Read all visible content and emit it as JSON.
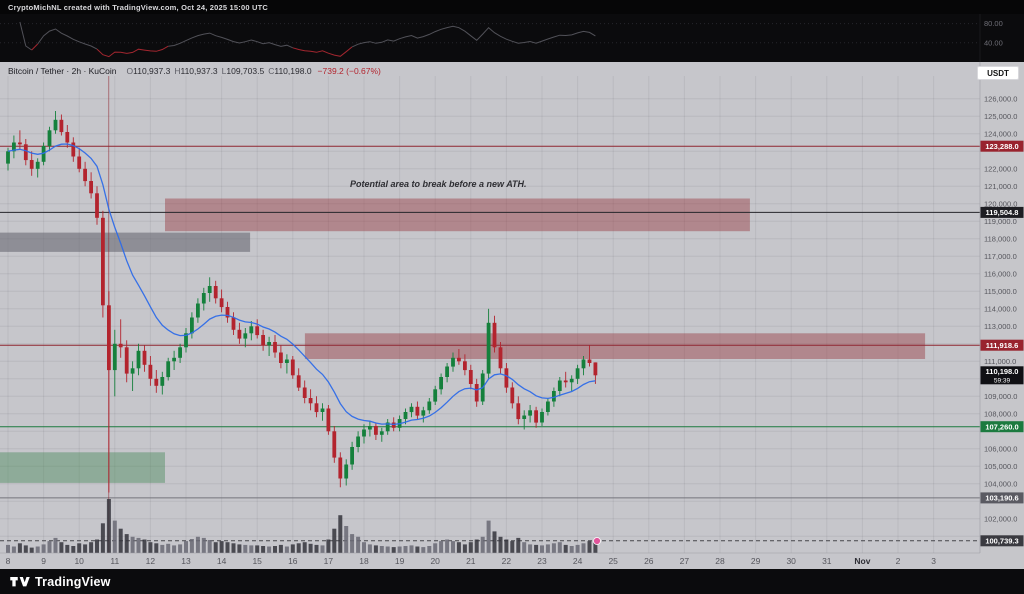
{
  "colors": {
    "up": "#15803c",
    "down": "#b3242e",
    "ma": "#2e6be8"
  },
  "top_bar": {
    "attribution": "CryptoMichNL created with TradingView.com, Oct 24, 2025 15:00 UTC"
  },
  "indicator_pane": {
    "ticks": [
      "80.00",
      "40.00"
    ]
  },
  "symbol_row": {
    "title": "Bitcoin / Tether · 2h · KuCoin",
    "ohlc": [
      {
        "k": "O",
        "v": "110,937.3"
      },
      {
        "k": "H",
        "v": "110,937.3"
      },
      {
        "k": "L",
        "v": "109,703.5"
      },
      {
        "k": "C",
        "v": "110,198.0"
      }
    ],
    "change": "−739.2 (−0.67%)",
    "currency_button": "USDT"
  },
  "annotation": {
    "text": "Potential area to break before a new ATH.",
    "day": 17.6,
    "price": 121100
  },
  "price_labels": [
    {
      "text": "123,288.0",
      "price": 123288.0,
      "bg": "#99232e"
    },
    {
      "text": "119,504.8",
      "price": 119504.8,
      "bg": "#1d1d22"
    },
    {
      "text": "111,918.6",
      "price": 111918.6,
      "bg": "#99232e"
    },
    {
      "text": "110,198.0",
      "price": 110198.0,
      "bg": "#101014",
      "countdown": "59:39"
    },
    {
      "text": "107,260.0",
      "price": 107260.0,
      "bg": "#1c7a3f"
    },
    {
      "text": "103,190.6",
      "price": 103190.6,
      "bg": "#5a5a62"
    },
    {
      "text": "100,739.3",
      "price": 100739.3,
      "bg": "#3a3a40"
    }
  ],
  "levels": [
    {
      "price": 123288.0,
      "color": "#8f2631",
      "dash": ""
    },
    {
      "price": 119504.8,
      "color": "#26262b",
      "dash": ""
    },
    {
      "price": 111918.6,
      "color": "#8f2631",
      "dash": ""
    },
    {
      "price": 107260.0,
      "color": "#1c7a3f",
      "dash": ""
    },
    {
      "price": 103190.6,
      "color": "#74747b",
      "dash": ""
    },
    {
      "price": 100739.3,
      "color": "#45454b",
      "dash": "4 3"
    }
  ],
  "zones": [
    {
      "name": "supply-zone-upper",
      "day_from": 12.41,
      "day_to": 28.84,
      "price_top": 120300,
      "price_bottom": 118430,
      "color": "rgba(148,48,56,0.42)"
    },
    {
      "name": "gray-zone",
      "day_from": 7.6,
      "day_to": 14.8,
      "price_top": 118350,
      "price_bottom": 117250,
      "color": "rgba(96,96,108,0.55)"
    },
    {
      "name": "supply-zone-mid",
      "day_from": 16.34,
      "day_to": 33.76,
      "price_top": 112600,
      "price_bottom": 111130,
      "color": "rgba(148,48,56,0.42)"
    },
    {
      "name": "demand-zone-green",
      "day_from": 7.6,
      "day_to": 12.41,
      "price_top": 105800,
      "price_bottom": 104050,
      "color": "rgba(52,130,70,0.38)"
    }
  ],
  "vline": {
    "day": 10.83,
    "color": "rgba(143,38,49,0.55)"
  },
  "time_axis": {
    "labels": [
      "8",
      "9",
      "10",
      "11",
      "12",
      "13",
      "14",
      "15",
      "16",
      "17",
      "18",
      "19",
      "20",
      "21",
      "22",
      "23",
      "24",
      "25",
      "26",
      "27",
      "28",
      "29",
      "30",
      "31",
      "Nov",
      "2",
      "3"
    ]
  },
  "footer": {
    "brand": "TradingView"
  },
  "chart_data": {
    "type": "candlestick",
    "title": "Bitcoin / Tether",
    "interval": "2h",
    "exchange": "KuCoin",
    "ylim": [
      100500,
      126500
    ],
    "start_day": 8,
    "candles_per_day": 6,
    "ma_period": 14,
    "last": {
      "open": 110937.3,
      "high": 110937.3,
      "low": 109703.5,
      "close": 110198.0,
      "change": -739.2,
      "change_pct": -0.67
    },
    "candles": [
      [
        122300,
        123200,
        121900,
        123000
      ],
      [
        123000,
        123900,
        122600,
        123500
      ],
      [
        123500,
        124200,
        123100,
        123400
      ],
      [
        123400,
        123700,
        122200,
        122500
      ],
      [
        122500,
        123000,
        121600,
        122000
      ],
      [
        122000,
        122600,
        121500,
        122400
      ],
      [
        122400,
        123500,
        122200,
        123300
      ],
      [
        123300,
        124400,
        123000,
        124200
      ],
      [
        124200,
        125300,
        124000,
        124800
      ],
      [
        124800,
        125100,
        123900,
        124100
      ],
      [
        124100,
        124500,
        123200,
        123500
      ],
      [
        123500,
        123800,
        122400,
        122700
      ],
      [
        122700,
        123200,
        121800,
        122000
      ],
      [
        122000,
        122400,
        121000,
        121300
      ],
      [
        121300,
        121800,
        120300,
        120600
      ],
      [
        120600,
        121000,
        118800,
        119200
      ],
      [
        119200,
        119600,
        113500,
        114200
      ],
      [
        114200,
        115000,
        103500,
        110500
      ],
      [
        110500,
        112800,
        109000,
        112000
      ],
      [
        112000,
        113400,
        111200,
        111800
      ],
      [
        111800,
        112200,
        109800,
        110300
      ],
      [
        110300,
        111000,
        109300,
        110600
      ],
      [
        110600,
        112000,
        110200,
        111600
      ],
      [
        111600,
        111900,
        110400,
        110800
      ],
      [
        110800,
        111300,
        109600,
        110000
      ],
      [
        110000,
        110500,
        109200,
        109600
      ],
      [
        109600,
        110400,
        109100,
        110100
      ],
      [
        110100,
        111200,
        109900,
        111000
      ],
      [
        111000,
        111600,
        110500,
        111200
      ],
      [
        111200,
        112000,
        110900,
        111800
      ],
      [
        111800,
        112900,
        111500,
        112600
      ],
      [
        112600,
        113800,
        112300,
        113500
      ],
      [
        113500,
        114600,
        113200,
        114300
      ],
      [
        114300,
        115200,
        113900,
        114900
      ],
      [
        114900,
        115800,
        114400,
        115300
      ],
      [
        115300,
        115600,
        114300,
        114600
      ],
      [
        114600,
        115100,
        113800,
        114100
      ],
      [
        114100,
        114400,
        113200,
        113500
      ],
      [
        113500,
        113800,
        112500,
        112800
      ],
      [
        112800,
        113200,
        112000,
        112300
      ],
      [
        112300,
        112900,
        111800,
        112600
      ],
      [
        112600,
        113300,
        112200,
        113000
      ],
      [
        113000,
        113400,
        112300,
        112500
      ],
      [
        112500,
        112800,
        111600,
        111900
      ],
      [
        111900,
        112400,
        111300,
        112100
      ],
      [
        112100,
        112500,
        111200,
        111500
      ],
      [
        111500,
        111900,
        110600,
        110900
      ],
      [
        110900,
        111400,
        110300,
        111100
      ],
      [
        111100,
        111300,
        110000,
        110200
      ],
      [
        110200,
        110600,
        109300,
        109500
      ],
      [
        109500,
        109900,
        108600,
        108900
      ],
      [
        108900,
        109400,
        108200,
        108600
      ],
      [
        108600,
        109000,
        107800,
        108100
      ],
      [
        108100,
        108600,
        107600,
        108300
      ],
      [
        108300,
        108500,
        106800,
        107000
      ],
      [
        107000,
        107300,
        105200,
        105500
      ],
      [
        105500,
        105800,
        103800,
        104300
      ],
      [
        104300,
        105400,
        103900,
        105100
      ],
      [
        105100,
        106400,
        104800,
        106100
      ],
      [
        106100,
        107000,
        105800,
        106700
      ],
      [
        106700,
        107400,
        106300,
        107100
      ],
      [
        107100,
        107600,
        106700,
        107300
      ],
      [
        107300,
        107500,
        106500,
        106800
      ],
      [
        106800,
        107200,
        106400,
        107000
      ],
      [
        107000,
        107700,
        106800,
        107500
      ],
      [
        107500,
        107800,
        107000,
        107200
      ],
      [
        107200,
        107900,
        107000,
        107700
      ],
      [
        107700,
        108300,
        107400,
        108100
      ],
      [
        108100,
        108600,
        107800,
        108400
      ],
      [
        108400,
        108700,
        107700,
        107900
      ],
      [
        107900,
        108400,
        107500,
        108200
      ],
      [
        108200,
        108900,
        108000,
        108700
      ],
      [
        108700,
        109600,
        108500,
        109400
      ],
      [
        109400,
        110300,
        109100,
        110100
      ],
      [
        110100,
        110900,
        109800,
        110700
      ],
      [
        110700,
        111500,
        110400,
        111200
      ],
      [
        111200,
        111700,
        110800,
        111000
      ],
      [
        111000,
        111400,
        110200,
        110500
      ],
      [
        110500,
        110800,
        109400,
        109700
      ],
      [
        109700,
        110000,
        108400,
        108700
      ],
      [
        108700,
        110500,
        108500,
        110300
      ],
      [
        110300,
        114000,
        110000,
        113200
      ],
      [
        113200,
        113600,
        111500,
        111800
      ],
      [
        111800,
        112100,
        110300,
        110600
      ],
      [
        110600,
        110900,
        109200,
        109500
      ],
      [
        109500,
        109800,
        108300,
        108600
      ],
      [
        108600,
        109000,
        107400,
        107700
      ],
      [
        107700,
        108200,
        107100,
        107900
      ],
      [
        107900,
        108500,
        107500,
        108200
      ],
      [
        108200,
        108400,
        107200,
        107500
      ],
      [
        107500,
        108300,
        107300,
        108100
      ],
      [
        108100,
        108900,
        107900,
        108700
      ],
      [
        108700,
        109500,
        108400,
        109300
      ],
      [
        109300,
        110100,
        109000,
        109900
      ],
      [
        109900,
        110400,
        109500,
        109800
      ],
      [
        109800,
        110200,
        109300,
        110000
      ],
      [
        110000,
        110800,
        109700,
        110600
      ],
      [
        110600,
        111300,
        110200,
        111100
      ],
      [
        111100,
        111900,
        110700,
        110900
      ],
      [
        110937,
        110937,
        109704,
        110198
      ]
    ],
    "volumes": [
      0.15,
      0.12,
      0.18,
      0.14,
      0.1,
      0.12,
      0.16,
      0.22,
      0.28,
      0.2,
      0.15,
      0.13,
      0.18,
      0.16,
      0.2,
      0.25,
      0.55,
      1.0,
      0.6,
      0.45,
      0.35,
      0.3,
      0.28,
      0.25,
      0.2,
      0.18,
      0.15,
      0.17,
      0.14,
      0.16,
      0.22,
      0.26,
      0.3,
      0.28,
      0.24,
      0.2,
      0.22,
      0.2,
      0.18,
      0.16,
      0.15,
      0.14,
      0.14,
      0.13,
      0.12,
      0.13,
      0.15,
      0.12,
      0.16,
      0.18,
      0.2,
      0.17,
      0.15,
      0.14,
      0.25,
      0.45,
      0.7,
      0.5,
      0.35,
      0.3,
      0.2,
      0.16,
      0.14,
      0.13,
      0.12,
      0.11,
      0.12,
      0.13,
      0.14,
      0.12,
      0.11,
      0.13,
      0.18,
      0.22,
      0.25,
      0.22,
      0.2,
      0.16,
      0.2,
      0.25,
      0.3,
      0.6,
      0.4,
      0.3,
      0.25,
      0.22,
      0.28,
      0.2,
      0.16,
      0.15,
      0.14,
      0.16,
      0.18,
      0.2,
      0.15,
      0.13,
      0.15,
      0.18,
      0.22,
      0.25
    ]
  }
}
